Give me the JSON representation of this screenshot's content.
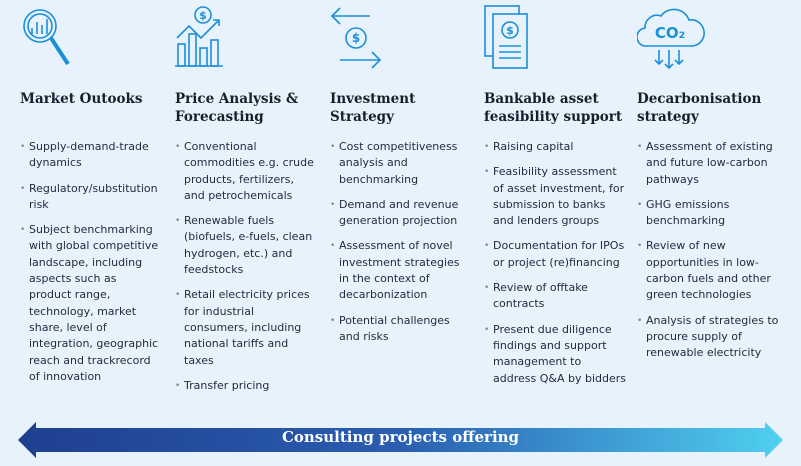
{
  "columns": [
    {
      "title": "Market Outooks",
      "bullets": [
        "Supply-demand-trade dynamics",
        "Regulatory/substitution risk",
        "Subject benchmarking with global competitive landscape, including aspects such as product range, technology, market share, level of integration, geographic reach and trackrecord of innovation"
      ]
    },
    {
      "icon_text": "$",
      "title": "Price Analysis & Forecasting",
      "bullets": [
        "Conventional commodities e.g. crude products, fertilizers, and petrochemicals",
        "Renewable fuels (biofuels, e-fuels, clean hydrogen, etc.) and feedstocks",
        "Retail electricity prices for industrial consumers, including national tariffs and taxes",
        "Transfer pricing"
      ]
    },
    {
      "icon_text": "$",
      "title": "Investment Strategy",
      "bullets": [
        "Cost competitiveness analysis and benchmarking",
        "Demand and revenue generation projection",
        "Assessment of novel investment strategies in the context of decarbonization",
        "Potential challenges and risks"
      ]
    },
    {
      "icon_text": "$",
      "title": "Bankable asset feasibility support",
      "bullets": [
        "Raising capital",
        "Feasibility assessment of asset investment, for submission to banks and lenders groups",
        "Documentation for IPOs or project (re)financing",
        "Review of offtake contracts",
        "Present due diligence findings and support management to address Q&A by bidders"
      ]
    },
    {
      "icon_text": "CO₂",
      "title": "Decarbonisation strategy",
      "bullets": [
        "Assessment of existing and future low-carbon pathways",
        "GHG emissions benchmarking",
        "Review of new opportunities in low-carbon fuels and other green technologies",
        "Analysis of strategies to procure supply of renewable electricity"
      ]
    }
  ],
  "footer": "Consulting projects offering"
}
